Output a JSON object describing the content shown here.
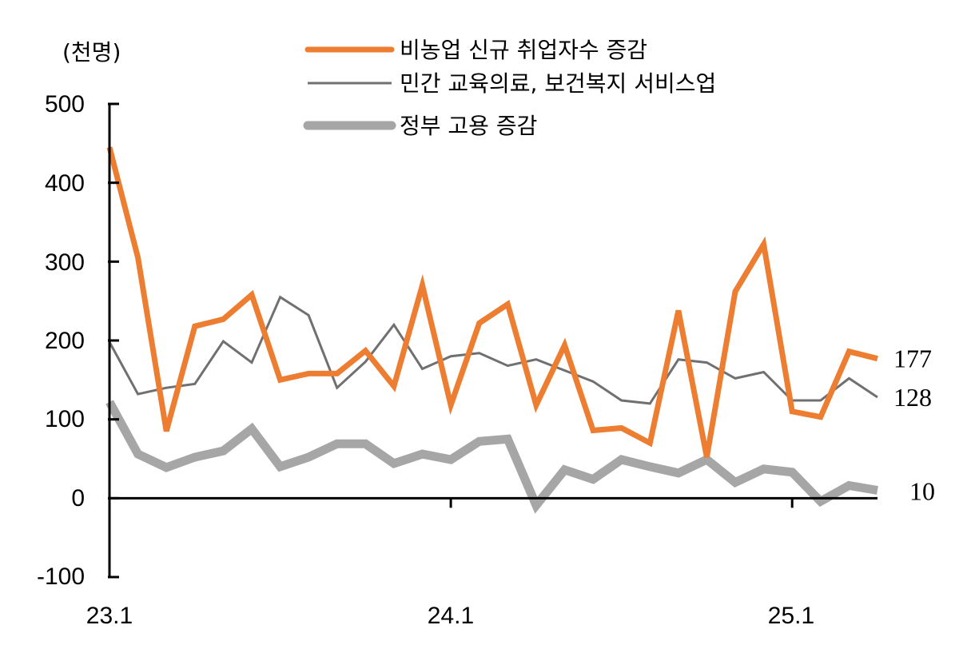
{
  "chart_data": {
    "type": "line",
    "unit_label": "(천명)",
    "ylim": [
      -100,
      500
    ],
    "yticks": [
      "500",
      "400",
      "300",
      "200",
      "100",
      "0",
      "-100"
    ],
    "x_tick_labels": [
      {
        "label": "23.1",
        "index": 0
      },
      {
        "label": "24.1",
        "index": 12
      },
      {
        "label": "25.1",
        "index": 24
      }
    ],
    "series": [
      {
        "name": "비농업 신규 취업자수 증감",
        "color": "#ED7D31",
        "style": "thick",
        "end_label": "177",
        "values": [
          445,
          305,
          85,
          218,
          227,
          258,
          150,
          158,
          158,
          187,
          142,
          270,
          118,
          222,
          246,
          118,
          194,
          86,
          89,
          70,
          238,
          52,
          262,
          322,
          110,
          103,
          186,
          177
        ]
      },
      {
        "name": "민간 교육의료, 보건복지 서비스업",
        "color": "#707070",
        "style": "thin",
        "end_label": "128",
        "values": [
          198,
          132,
          140,
          145,
          199,
          172,
          255,
          232,
          140,
          173,
          220,
          164,
          180,
          184,
          168,
          176,
          162,
          148,
          124,
          120,
          176,
          172,
          152,
          160,
          124,
          124,
          152,
          128
        ]
      },
      {
        "name": "정부 고용 증감",
        "color": "#A6A6A6",
        "style": "thickest",
        "end_label": "10",
        "values": [
          122,
          56,
          39,
          52,
          60,
          88,
          40,
          52,
          69,
          69,
          44,
          56,
          49,
          72,
          75,
          -9,
          36,
          24,
          49,
          40,
          32,
          49,
          20,
          37,
          33,
          -4,
          16,
          10
        ]
      }
    ]
  }
}
